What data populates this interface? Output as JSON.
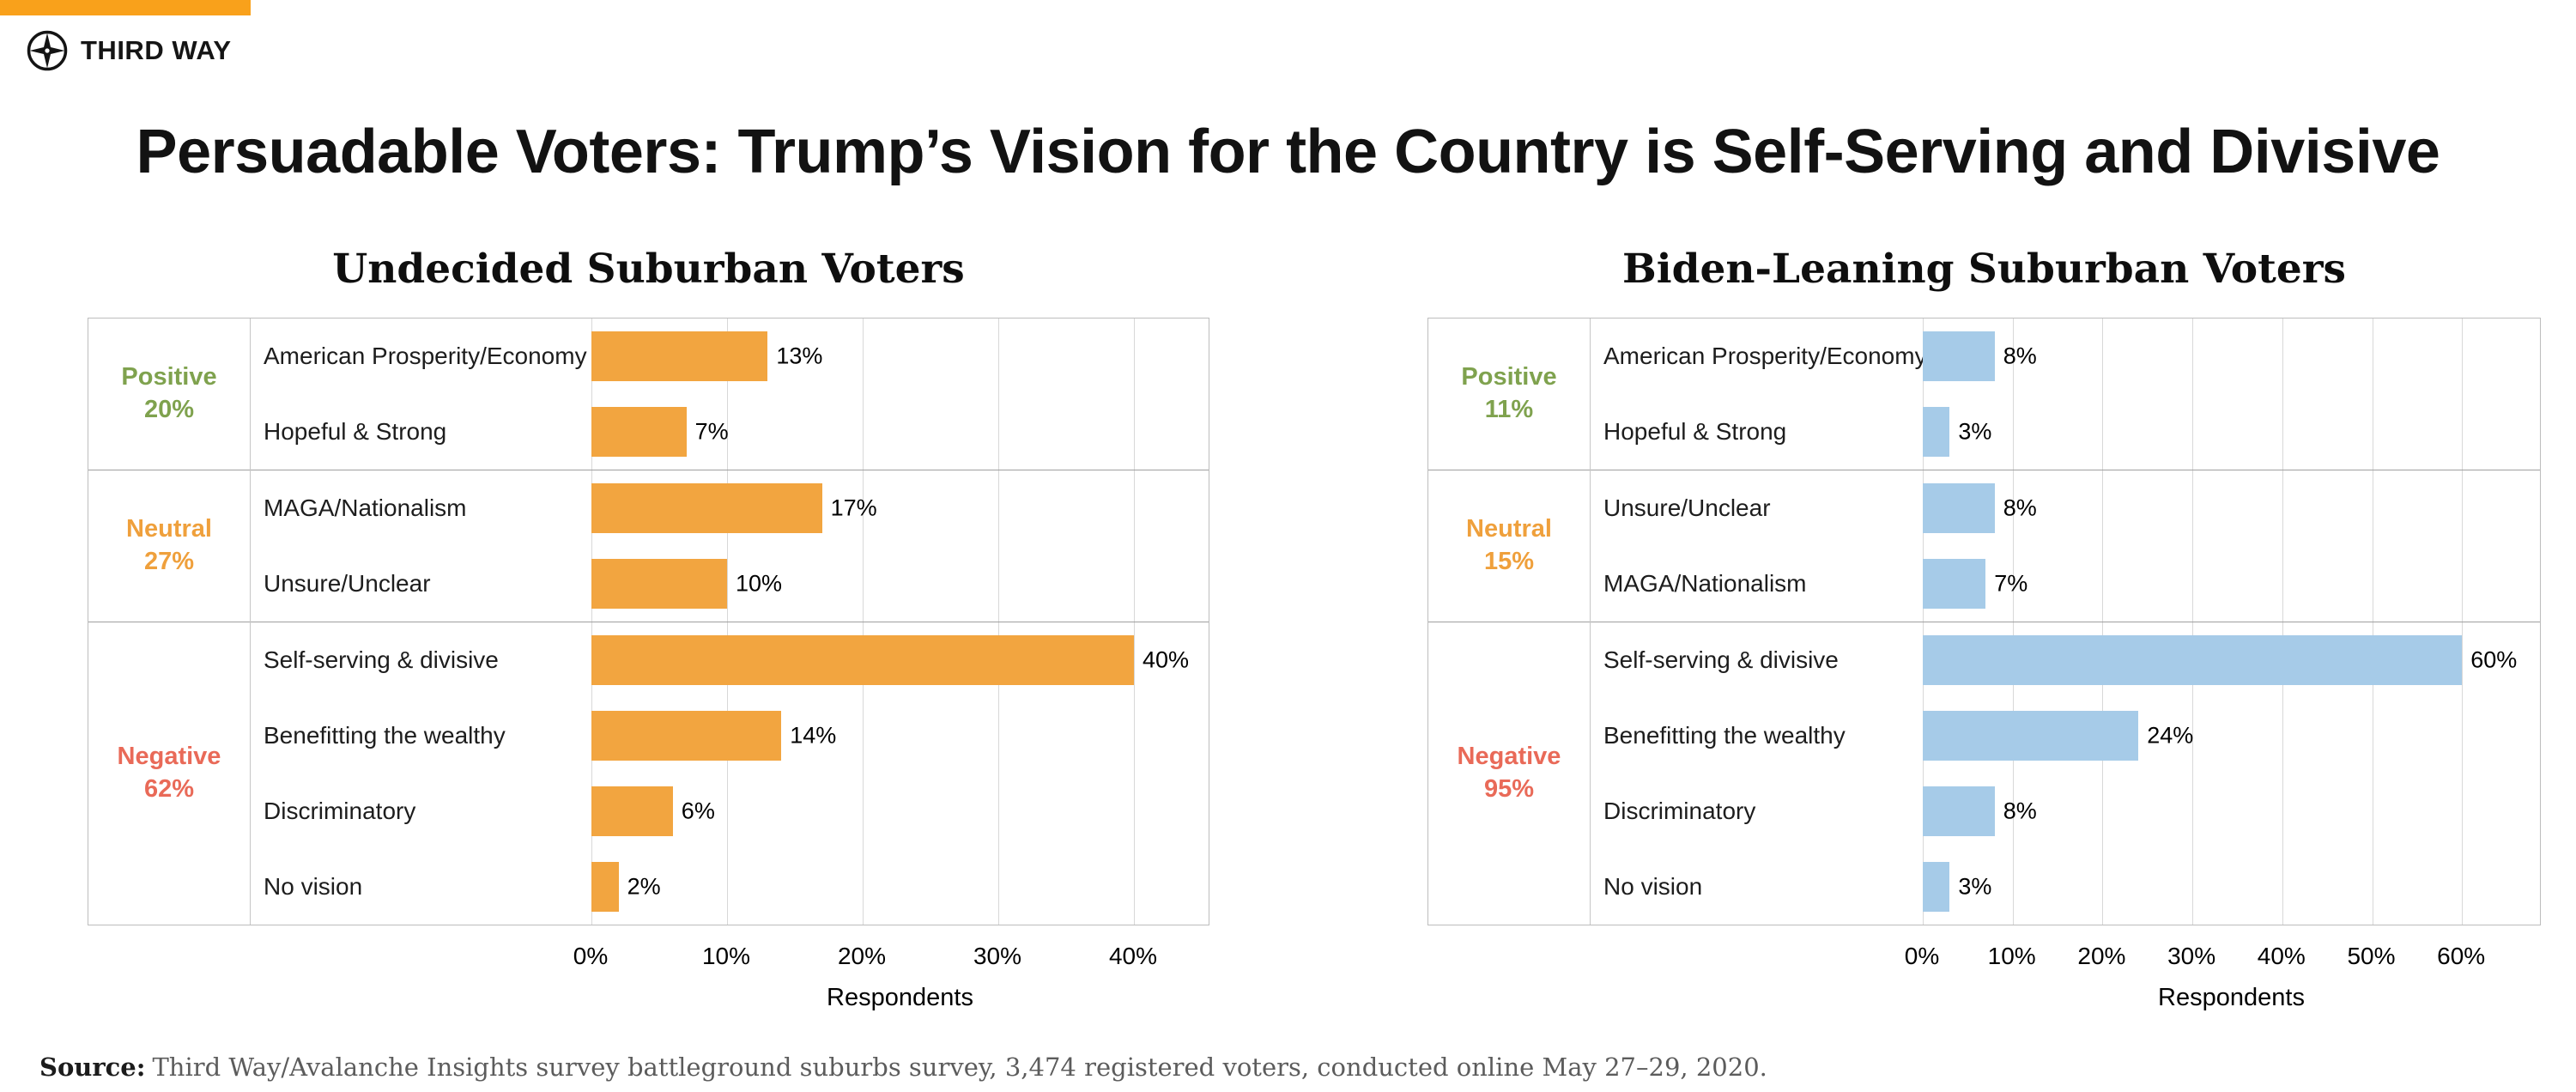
{
  "brand": {
    "name": "THIRD WAY",
    "stripe_color": "#F9A11B",
    "logo_icon": "compass-icon"
  },
  "title": "Persuadable Voters: Trump’s Vision for the Country is Self-Serving and Divisive",
  "source": {
    "label": "Source:",
    "text": "Third Way/Avalanche Insights survey battleground suburbs survey, 3,474 registered voters, conducted online May 27–29, 2020."
  },
  "colors": {
    "positive": "#7FA24E",
    "neutral": "#EFA03C",
    "negative": "#E96A58",
    "orange_bar": "#F2A540",
    "blue_bar": "#A6CBE8"
  },
  "chart_data": [
    {
      "type": "bar",
      "orientation": "horizontal",
      "title": "Undecided Suburban Voters",
      "xlabel": "Respondents",
      "bar_color": "#F2A540",
      "xlim": [
        0,
        45.6
      ],
      "ticks": [
        "0%",
        "10%",
        "20%",
        "30%",
        "40%"
      ],
      "tick_values": [
        0,
        10,
        20,
        30,
        40
      ],
      "grid": true,
      "groups": [
        {
          "label": "Positive",
          "pct": "20%",
          "color": "#7FA24E",
          "rows": [
            {
              "category": "American Prosperity/Economy",
              "value": 13,
              "label": "13%"
            },
            {
              "category": "Hopeful & Strong",
              "value": 7,
              "label": "7%"
            }
          ]
        },
        {
          "label": "Neutral",
          "pct": "27%",
          "color": "#EFA03C",
          "rows": [
            {
              "category": "MAGA/Nationalism",
              "value": 17,
              "label": "17%"
            },
            {
              "category": "Unsure/Unclear",
              "value": 10,
              "label": "10%"
            }
          ]
        },
        {
          "label": "Negative",
          "pct": "62%",
          "color": "#E96A58",
          "rows": [
            {
              "category": "Self-serving & divisive",
              "value": 40,
              "label": "40%"
            },
            {
              "category": "Benefitting the wealthy",
              "value": 14,
              "label": "14%"
            },
            {
              "category": "Discriminatory",
              "value": 6,
              "label": "6%"
            },
            {
              "category": "No vision",
              "value": 2,
              "label": "2%"
            }
          ]
        }
      ]
    },
    {
      "type": "bar",
      "orientation": "horizontal",
      "title": "Biden-Leaning Suburban Voters",
      "xlabel": "Respondents",
      "bar_color": "#A6CBE8",
      "xlim": [
        0,
        68.8
      ],
      "ticks": [
        "0%",
        "10%",
        "20%",
        "30%",
        "40%",
        "50%",
        "60%"
      ],
      "tick_values": [
        0,
        10,
        20,
        30,
        40,
        50,
        60
      ],
      "grid": true,
      "groups": [
        {
          "label": "Positive",
          "pct": "11%",
          "color": "#7FA24E",
          "rows": [
            {
              "category": "American Prosperity/Economy",
              "value": 8,
              "label": "8%"
            },
            {
              "category": "Hopeful & Strong",
              "value": 3,
              "label": "3%"
            }
          ]
        },
        {
          "label": "Neutral",
          "pct": "15%",
          "color": "#EFA03C",
          "rows": [
            {
              "category": "Unsure/Unclear",
              "value": 8,
              "label": "8%"
            },
            {
              "category": "MAGA/Nationalism",
              "value": 7,
              "label": "7%"
            }
          ]
        },
        {
          "label": "Negative",
          "pct": "95%",
          "color": "#E96A58",
          "rows": [
            {
              "category": "Self-serving & divisive",
              "value": 60,
              "label": "60%"
            },
            {
              "category": "Benefitting the wealthy",
              "value": 24,
              "label": "24%"
            },
            {
              "category": "Discriminatory",
              "value": 8,
              "label": "8%"
            },
            {
              "category": "No vision",
              "value": 3,
              "label": "3%"
            }
          ]
        }
      ]
    }
  ]
}
